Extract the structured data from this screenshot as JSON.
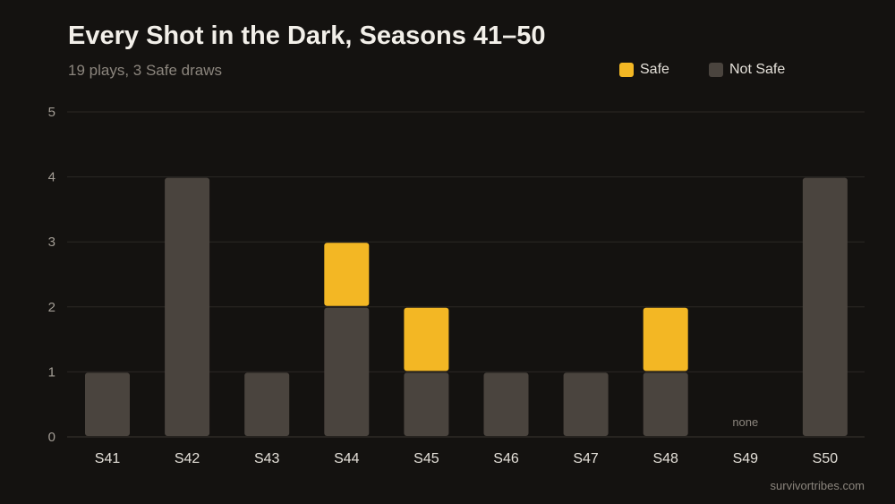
{
  "title": "Every Shot in the Dark, Seasons 41–50",
  "subtitle": "19 plays, 3 Safe draws",
  "source": "survivortribes.com",
  "legend": [
    {
      "label": "Safe",
      "color": "#f3b724"
    },
    {
      "label": "Not Safe",
      "color": "#4a443e"
    }
  ],
  "chart_data": {
    "type": "bar",
    "stacked": true,
    "categories": [
      "S41",
      "S42",
      "S43",
      "S44",
      "S45",
      "S46",
      "S47",
      "S48",
      "S49",
      "S50"
    ],
    "series": [
      {
        "name": "Not Safe",
        "color": "#4a443e",
        "values": [
          1,
          4,
          1,
          2,
          1,
          1,
          1,
          1,
          0,
          4
        ]
      },
      {
        "name": "Safe",
        "color": "#f3b724",
        "values": [
          0,
          0,
          0,
          1,
          1,
          0,
          0,
          1,
          0,
          0
        ]
      }
    ],
    "ylim": [
      0,
      5
    ],
    "yticks": [
      0,
      1,
      2,
      3,
      4,
      5
    ],
    "grid": true,
    "legend_position": "top-right",
    "annotations": [
      {
        "category": "S49",
        "text": "none"
      }
    ]
  }
}
